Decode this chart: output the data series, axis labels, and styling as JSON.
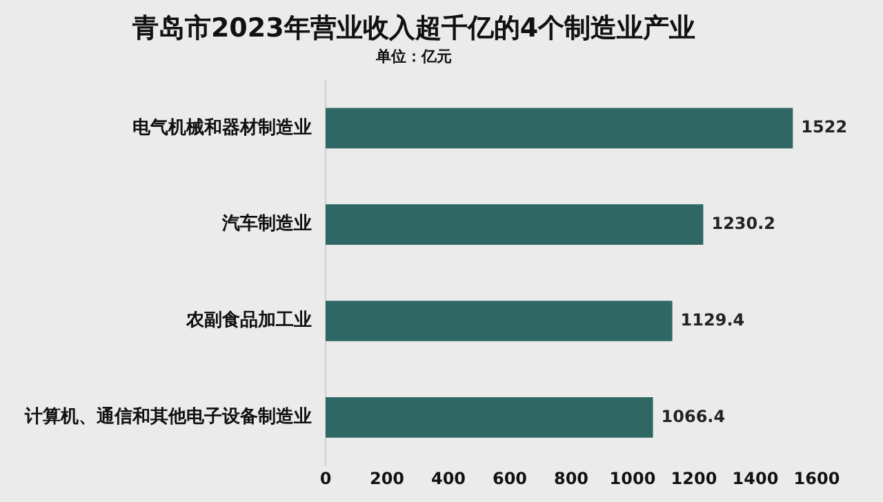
{
  "chart_data": {
    "type": "bar",
    "orientation": "horizontal",
    "title": "青岛市2023年营业收入超千亿的4个制造业产业",
    "subtitle": "单位：亿元",
    "categories": [
      "电气机械和器材制造业",
      "汽车制造业",
      "农副食品加工业",
      "计算机、通信和其他电子设备制造业"
    ],
    "values": [
      1522,
      1230.2,
      1129.4,
      1066.4
    ],
    "color": "#2e6763",
    "xlim": [
      0,
      1600
    ],
    "xticks": [
      0,
      200,
      400,
      600,
      800,
      1000,
      1200,
      1400,
      1600
    ],
    "grid": false,
    "data_labels": true,
    "legend": false
  }
}
